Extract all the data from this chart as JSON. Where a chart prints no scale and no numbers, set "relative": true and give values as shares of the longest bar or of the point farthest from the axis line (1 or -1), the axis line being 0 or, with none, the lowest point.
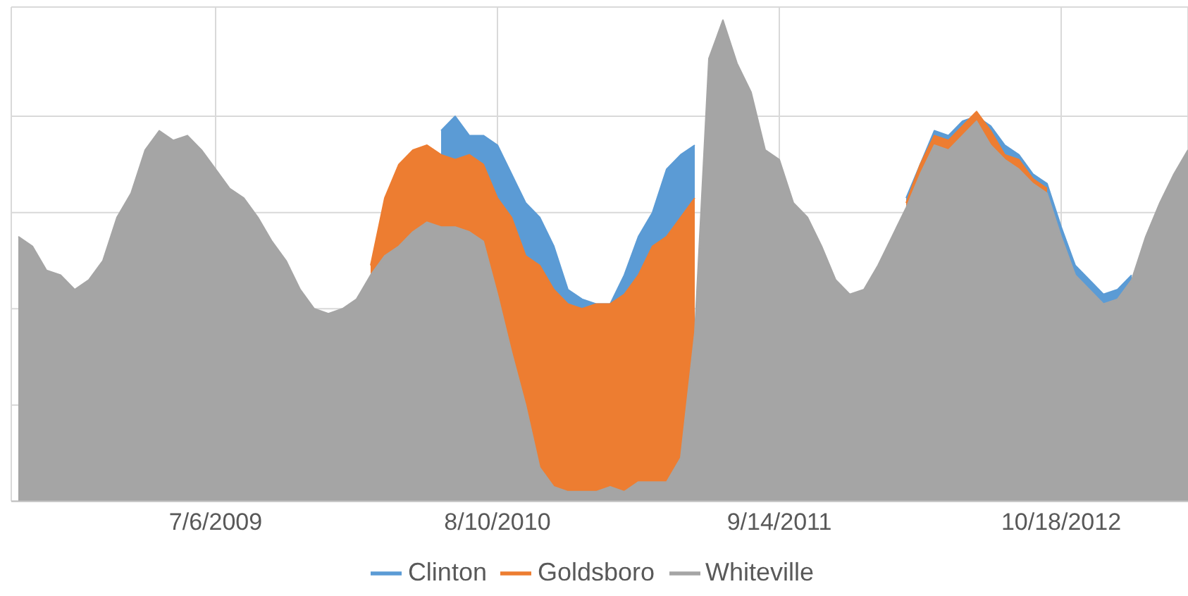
{
  "chart_data": {
    "type": "area",
    "relative": true,
    "grid": true,
    "legend": "bottom",
    "x": [
      "2008-09-29",
      "2008-10-19",
      "2008-11-08",
      "2008-11-28",
      "2008-12-18",
      "2009-01-07",
      "2009-01-27",
      "2009-02-16",
      "2009-03-08",
      "2009-03-28",
      "2009-04-17",
      "2009-05-07",
      "2009-05-27",
      "2009-06-16",
      "2009-07-06",
      "2009-07-26",
      "2009-08-15",
      "2009-09-04",
      "2009-09-24",
      "2009-10-14",
      "2009-11-03",
      "2009-11-23",
      "2009-12-13",
      "2010-01-02",
      "2010-01-22",
      "2010-02-11",
      "2010-03-03",
      "2010-03-23",
      "2010-04-12",
      "2010-05-02",
      "2010-05-22",
      "2010-06-11",
      "2010-07-01",
      "2010-07-21",
      "2010-08-10",
      "2010-08-30",
      "2010-09-19",
      "2010-10-09",
      "2010-10-29",
      "2010-11-18",
      "2010-12-08",
      "2010-12-28",
      "2011-01-17",
      "2011-02-06",
      "2011-02-26",
      "2011-03-18",
      "2011-04-07",
      "2011-04-27",
      "2011-05-17",
      "2011-06-06",
      "2011-06-26",
      "2011-07-16",
      "2011-08-05",
      "2011-08-25",
      "2011-09-14",
      "2011-10-04",
      "2011-10-24",
      "2011-11-13",
      "2011-12-03",
      "2011-12-23",
      "2012-01-12",
      "2012-02-01",
      "2012-02-21",
      "2012-03-12",
      "2012-04-01",
      "2012-04-21",
      "2012-05-11",
      "2012-05-31",
      "2012-06-20",
      "2012-07-10",
      "2012-07-30",
      "2012-08-19",
      "2012-09-08",
      "2012-09-28",
      "2012-10-18",
      "2012-11-07",
      "2012-11-27",
      "2012-12-17",
      "2013-01-06",
      "2013-01-26",
      "2013-02-15",
      "2013-03-07",
      "2013-03-27",
      "2013-04-16"
    ],
    "xlim": [
      "2008-09-19",
      "2013-04-16"
    ],
    "xticks": [
      {
        "value": "2009-07-06",
        "label": "7/6/2009"
      },
      {
        "value": "2010-08-10",
        "label": "8/10/2010"
      },
      {
        "value": "2011-09-14",
        "label": "9/14/2011"
      },
      {
        "value": "2012-10-18",
        "label": "10/18/2012"
      }
    ],
    "series": [
      {
        "name": "Clinton",
        "color": "#5b9bd5",
        "values": [
          null,
          null,
          null,
          null,
          null,
          null,
          null,
          null,
          null,
          null,
          null,
          null,
          null,
          null,
          null,
          null,
          null,
          null,
          null,
          null,
          null,
          null,
          null,
          null,
          null,
          null,
          null,
          null,
          null,
          null,
          0.77,
          0.8,
          0.76,
          0.76,
          0.74,
          0.68,
          0.62,
          0.59,
          0.53,
          0.44,
          0.42,
          0.41,
          0.41,
          0.47,
          0.55,
          0.6,
          0.69,
          0.72,
          0.74,
          null,
          null,
          null,
          null,
          null,
          null,
          null,
          null,
          null,
          null,
          null,
          null,
          null,
          null,
          0.63,
          0.7,
          0.77,
          0.76,
          0.79,
          0.8,
          0.78,
          0.74,
          0.72,
          0.68,
          0.66,
          0.57,
          0.49,
          0.46,
          0.43,
          0.44,
          0.47,
          null,
          null,
          null,
          null
        ]
      },
      {
        "name": "Goldsboro",
        "color": "#ed7d31",
        "values": [
          null,
          null,
          null,
          null,
          null,
          null,
          null,
          null,
          null,
          null,
          null,
          null,
          null,
          null,
          null,
          null,
          null,
          null,
          null,
          null,
          null,
          null,
          null,
          null,
          null,
          0.49,
          0.63,
          0.7,
          0.73,
          0.74,
          0.72,
          0.71,
          0.72,
          0.7,
          0.63,
          0.59,
          0.51,
          0.49,
          0.44,
          0.41,
          0.4,
          0.41,
          0.41,
          0.43,
          0.47,
          0.53,
          0.55,
          0.59,
          0.63,
          null,
          null,
          null,
          null,
          null,
          null,
          null,
          null,
          null,
          null,
          null,
          null,
          null,
          null,
          0.62,
          0.7,
          0.76,
          0.75,
          0.78,
          0.81,
          0.77,
          0.72,
          0.71,
          0.67,
          0.65,
          null,
          null,
          null,
          null,
          null,
          null,
          null,
          null,
          null,
          null
        ]
      },
      {
        "name": "Whiteville",
        "color": "#a5a5a5",
        "values": [
          0.55,
          0.53,
          0.48,
          0.47,
          0.44,
          0.46,
          0.5,
          0.59,
          0.64,
          0.73,
          0.77,
          0.75,
          0.76,
          0.73,
          0.69,
          0.65,
          0.63,
          0.59,
          0.54,
          0.5,
          0.44,
          0.4,
          0.39,
          0.4,
          0.42,
          0.47,
          0.51,
          0.53,
          0.56,
          0.58,
          0.57,
          0.57,
          0.56,
          0.54,
          0.43,
          0.31,
          0.2,
          0.07,
          0.03,
          0.02,
          0.02,
          0.02,
          0.03,
          0.02,
          0.04,
          0.04,
          0.04,
          0.09,
          0.35,
          0.92,
          1.0,
          0.91,
          0.85,
          0.73,
          0.71,
          0.62,
          0.59,
          0.53,
          0.46,
          0.43,
          0.44,
          0.49,
          0.55,
          0.61,
          0.68,
          0.74,
          0.73,
          0.76,
          0.79,
          0.74,
          0.71,
          0.69,
          0.66,
          0.64,
          0.55,
          0.47,
          0.44,
          0.41,
          0.42,
          0.46,
          0.55,
          0.62,
          0.68,
          0.73
        ]
      }
    ]
  }
}
